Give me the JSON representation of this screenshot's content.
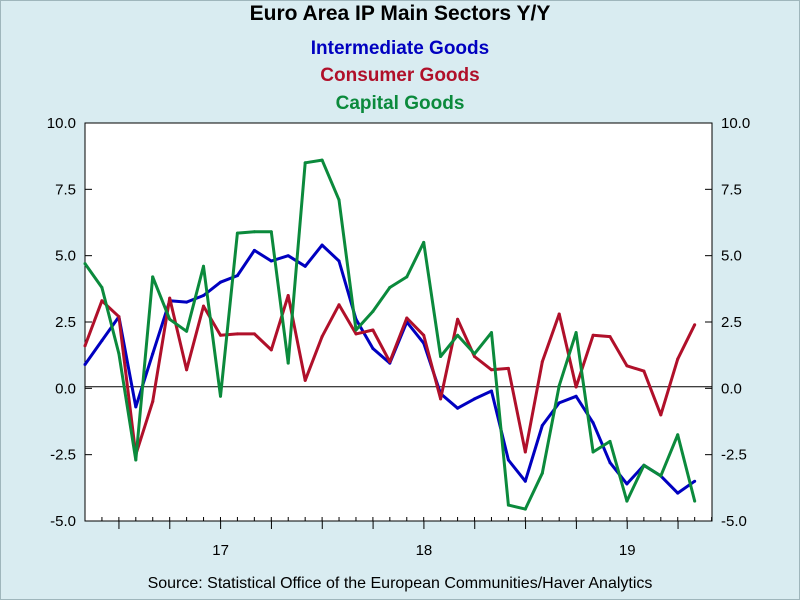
{
  "chart_data": {
    "type": "line",
    "title": "Euro Area IP Main Sectors Y/Y",
    "source": "Source:  Statistical Office of the European Communities/Haver Analytics",
    "ylim": [
      -5.0,
      10.0
    ],
    "yticks": [
      "10.0",
      "7.5",
      "5.0",
      "2.5",
      "0.0",
      "-2.5",
      "-5.0"
    ],
    "ytick_values": [
      10,
      7.5,
      5,
      2.5,
      0,
      -2.5,
      -5
    ],
    "xlim": [
      2016.333,
      2019.417
    ],
    "xticks": [
      {
        "label": "17",
        "x": 2017.0
      },
      {
        "label": "18",
        "x": 2018.0
      },
      {
        "label": "19",
        "x": 2019.0
      }
    ],
    "x_start": 2016.333,
    "x_step": 0.0833,
    "grid": false,
    "legend": "top-center",
    "series": [
      {
        "name": "Intermediate Goods",
        "color": "#0000c0",
        "values": [
          0.9,
          1.8,
          2.7,
          -0.7,
          1.3,
          3.3,
          3.25,
          3.5,
          4.0,
          4.25,
          5.2,
          4.8,
          5.0,
          4.6,
          5.4,
          4.8,
          2.6,
          1.5,
          0.95,
          2.5,
          1.7,
          -0.2,
          -0.75,
          -0.4,
          -0.1,
          -2.7,
          -3.5,
          -1.4,
          -0.55,
          -0.3,
          -1.3,
          -2.8,
          -3.6,
          -2.9,
          -3.3,
          -3.95,
          -3.5
        ]
      },
      {
        "name": "Consumer Goods",
        "color": "#b0102a",
        "values": [
          1.6,
          3.3,
          2.7,
          -2.5,
          -0.5,
          3.4,
          0.7,
          3.1,
          2.0,
          2.05,
          2.05,
          1.45,
          3.5,
          0.3,
          1.95,
          3.15,
          2.05,
          2.2,
          1.0,
          2.65,
          2.0,
          -0.4,
          2.6,
          1.2,
          0.7,
          0.75,
          -2.4,
          1.0,
          2.8,
          0.05,
          2.0,
          1.95,
          0.85,
          0.65,
          -1.0,
          1.1,
          2.4
        ]
      },
      {
        "name": "Capital Goods",
        "color": "#0b8a3c",
        "values": [
          4.7,
          3.8,
          1.3,
          -2.7,
          4.2,
          2.6,
          2.15,
          4.6,
          -0.3,
          5.85,
          5.9,
          5.9,
          0.95,
          8.5,
          8.6,
          7.1,
          2.2,
          2.9,
          3.8,
          4.2,
          5.5,
          1.2,
          2.0,
          1.3,
          2.1,
          -4.4,
          -4.55,
          -3.2,
          0.1,
          2.1,
          -2.4,
          -2.0,
          -4.25,
          -2.9,
          -3.3,
          -1.75,
          -4.25
        ]
      }
    ]
  }
}
